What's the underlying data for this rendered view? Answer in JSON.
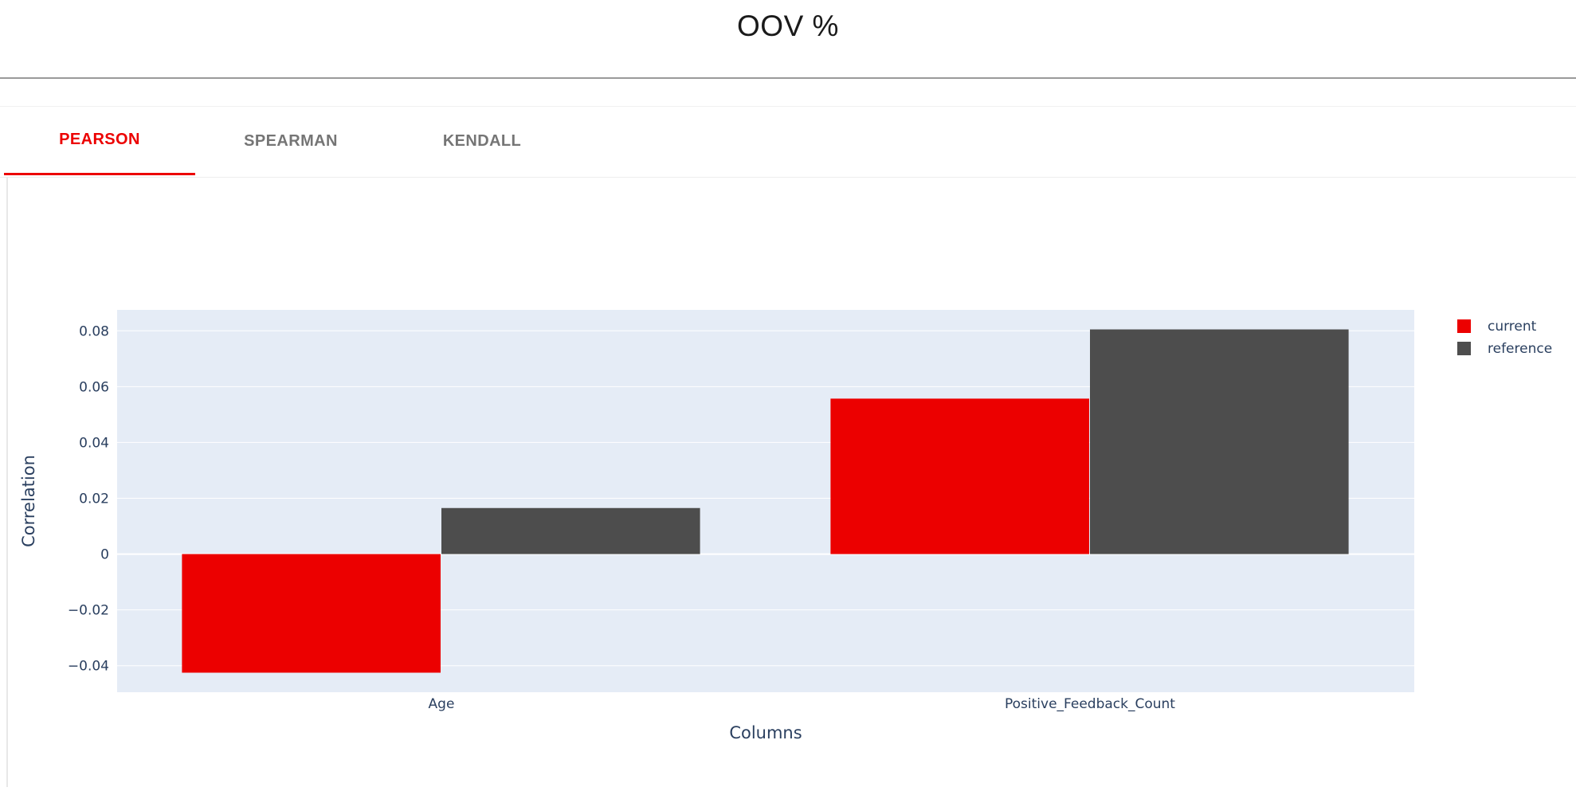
{
  "header": {
    "title": "OOV %"
  },
  "tabs": [
    {
      "label": "PEARSON",
      "active": true
    },
    {
      "label": "SPEARMAN",
      "active": false
    },
    {
      "label": "KENDALL",
      "active": false
    }
  ],
  "colors": {
    "current": "#ec0000",
    "reference": "#4d4d4d",
    "plot_bg": "#e5ecf6",
    "axis_text": "#2a3f5f"
  },
  "chart_data": {
    "type": "bar",
    "categories": [
      "Age",
      "Positive_Feedback_Count"
    ],
    "series": [
      {
        "name": "current",
        "values": [
          -0.0425,
          0.0557
        ]
      },
      {
        "name": "reference",
        "values": [
          0.0165,
          0.0805
        ]
      }
    ],
    "xlabel": "Columns",
    "ylabel": "Correlation",
    "ylim": [
      -0.0495,
      0.0875
    ],
    "yticks": [
      -0.04,
      -0.02,
      0,
      0.02,
      0.04,
      0.06,
      0.08
    ],
    "ytick_labels": [
      "−0.04",
      "−0.02",
      "0",
      "0.02",
      "0.04",
      "0.06",
      "0.08"
    ],
    "grid": true,
    "legend_position": "top-right"
  }
}
